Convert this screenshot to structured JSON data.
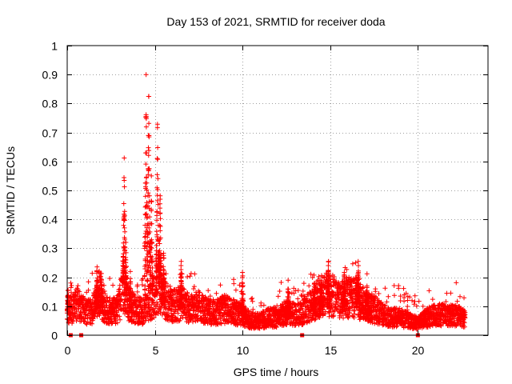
{
  "chart_data": {
    "type": "scatter",
    "title": "Day 153 of 2021, SRMTID for receiver doda",
    "xlabel": "GPS time / hours",
    "ylabel": "SRMTID / TECUs",
    "xlim": [
      0,
      24
    ],
    "ylim": [
      0,
      1
    ],
    "xticks": [
      0,
      5,
      10,
      15,
      20
    ],
    "xtick_labels": [
      "0",
      "5",
      "10",
      "15",
      "20"
    ],
    "yticks": [
      0,
      0.1,
      0.2,
      0.3,
      0.4,
      0.5,
      0.6,
      0.7,
      0.8,
      0.9,
      1
    ],
    "ytick_labels": [
      "0",
      "0.1",
      "0.2",
      "0.3",
      "0.4",
      "0.5",
      "0.6",
      "0.7",
      "0.8",
      "0.9",
      "1"
    ],
    "grid": true,
    "marker": "plus",
    "color": "#ff0000",
    "profile": [
      [
        0.0,
        0.09
      ],
      [
        0.3,
        0.09
      ],
      [
        0.6,
        0.11
      ],
      [
        1.0,
        0.08
      ],
      [
        1.4,
        0.08
      ],
      [
        1.8,
        0.15
      ],
      [
        2.1,
        0.1
      ],
      [
        2.5,
        0.08
      ],
      [
        2.9,
        0.09
      ],
      [
        3.2,
        0.16
      ],
      [
        3.5,
        0.11
      ],
      [
        3.9,
        0.09
      ],
      [
        4.3,
        0.08
      ],
      [
        4.8,
        0.12
      ],
      [
        5.2,
        0.16
      ],
      [
        5.6,
        0.12
      ],
      [
        6.0,
        0.1
      ],
      [
        6.5,
        0.11
      ],
      [
        7.0,
        0.09
      ],
      [
        7.5,
        0.1
      ],
      [
        8.0,
        0.08
      ],
      [
        8.5,
        0.08
      ],
      [
        9.0,
        0.09
      ],
      [
        9.5,
        0.08
      ],
      [
        10.0,
        0.07
      ],
      [
        10.5,
        0.05
      ],
      [
        11.0,
        0.05
      ],
      [
        11.5,
        0.06
      ],
      [
        12.0,
        0.06
      ],
      [
        12.5,
        0.08
      ],
      [
        13.0,
        0.07
      ],
      [
        13.5,
        0.08
      ],
      [
        14.0,
        0.11
      ],
      [
        14.5,
        0.14
      ],
      [
        15.0,
        0.14
      ],
      [
        15.5,
        0.12
      ],
      [
        16.0,
        0.13
      ],
      [
        16.5,
        0.13
      ],
      [
        17.0,
        0.1
      ],
      [
        17.5,
        0.09
      ],
      [
        18.0,
        0.07
      ],
      [
        18.5,
        0.06
      ],
      [
        19.0,
        0.06
      ],
      [
        19.5,
        0.05
      ],
      [
        20.0,
        0.04
      ],
      [
        20.5,
        0.06
      ],
      [
        21.0,
        0.07
      ],
      [
        21.5,
        0.07
      ],
      [
        22.0,
        0.07
      ],
      [
        22.7,
        0.06
      ]
    ],
    "spikes": [
      {
        "t": 0.05,
        "peak": 0.16
      },
      {
        "t": 1.7,
        "peak": 0.25
      },
      {
        "t": 1.95,
        "peak": 0.21
      },
      {
        "t": 3.25,
        "peak": 0.63
      },
      {
        "t": 3.35,
        "peak": 0.33
      },
      {
        "t": 3.6,
        "peak": 0.22
      },
      {
        "t": 4.5,
        "peak": 0.9
      },
      {
        "t": 4.65,
        "peak": 0.9
      },
      {
        "t": 4.8,
        "peak": 0.55
      },
      {
        "t": 5.15,
        "peak": 0.75
      },
      {
        "t": 5.3,
        "peak": 0.51
      },
      {
        "t": 5.5,
        "peak": 0.3
      },
      {
        "t": 6.5,
        "peak": 0.27
      },
      {
        "t": 10.0,
        "peak": 0.23
      },
      {
        "t": 12.6,
        "peak": 0.19
      },
      {
        "t": 14.1,
        "peak": 0.18
      },
      {
        "t": 14.5,
        "peak": 0.2
      },
      {
        "t": 14.9,
        "peak": 0.27
      },
      {
        "t": 15.8,
        "peak": 0.23
      },
      {
        "t": 16.6,
        "peak": 0.27
      },
      {
        "t": 17.1,
        "peak": 0.17
      }
    ],
    "zero_markers": [
      0.2,
      0.8,
      13.4,
      20.0
    ]
  }
}
